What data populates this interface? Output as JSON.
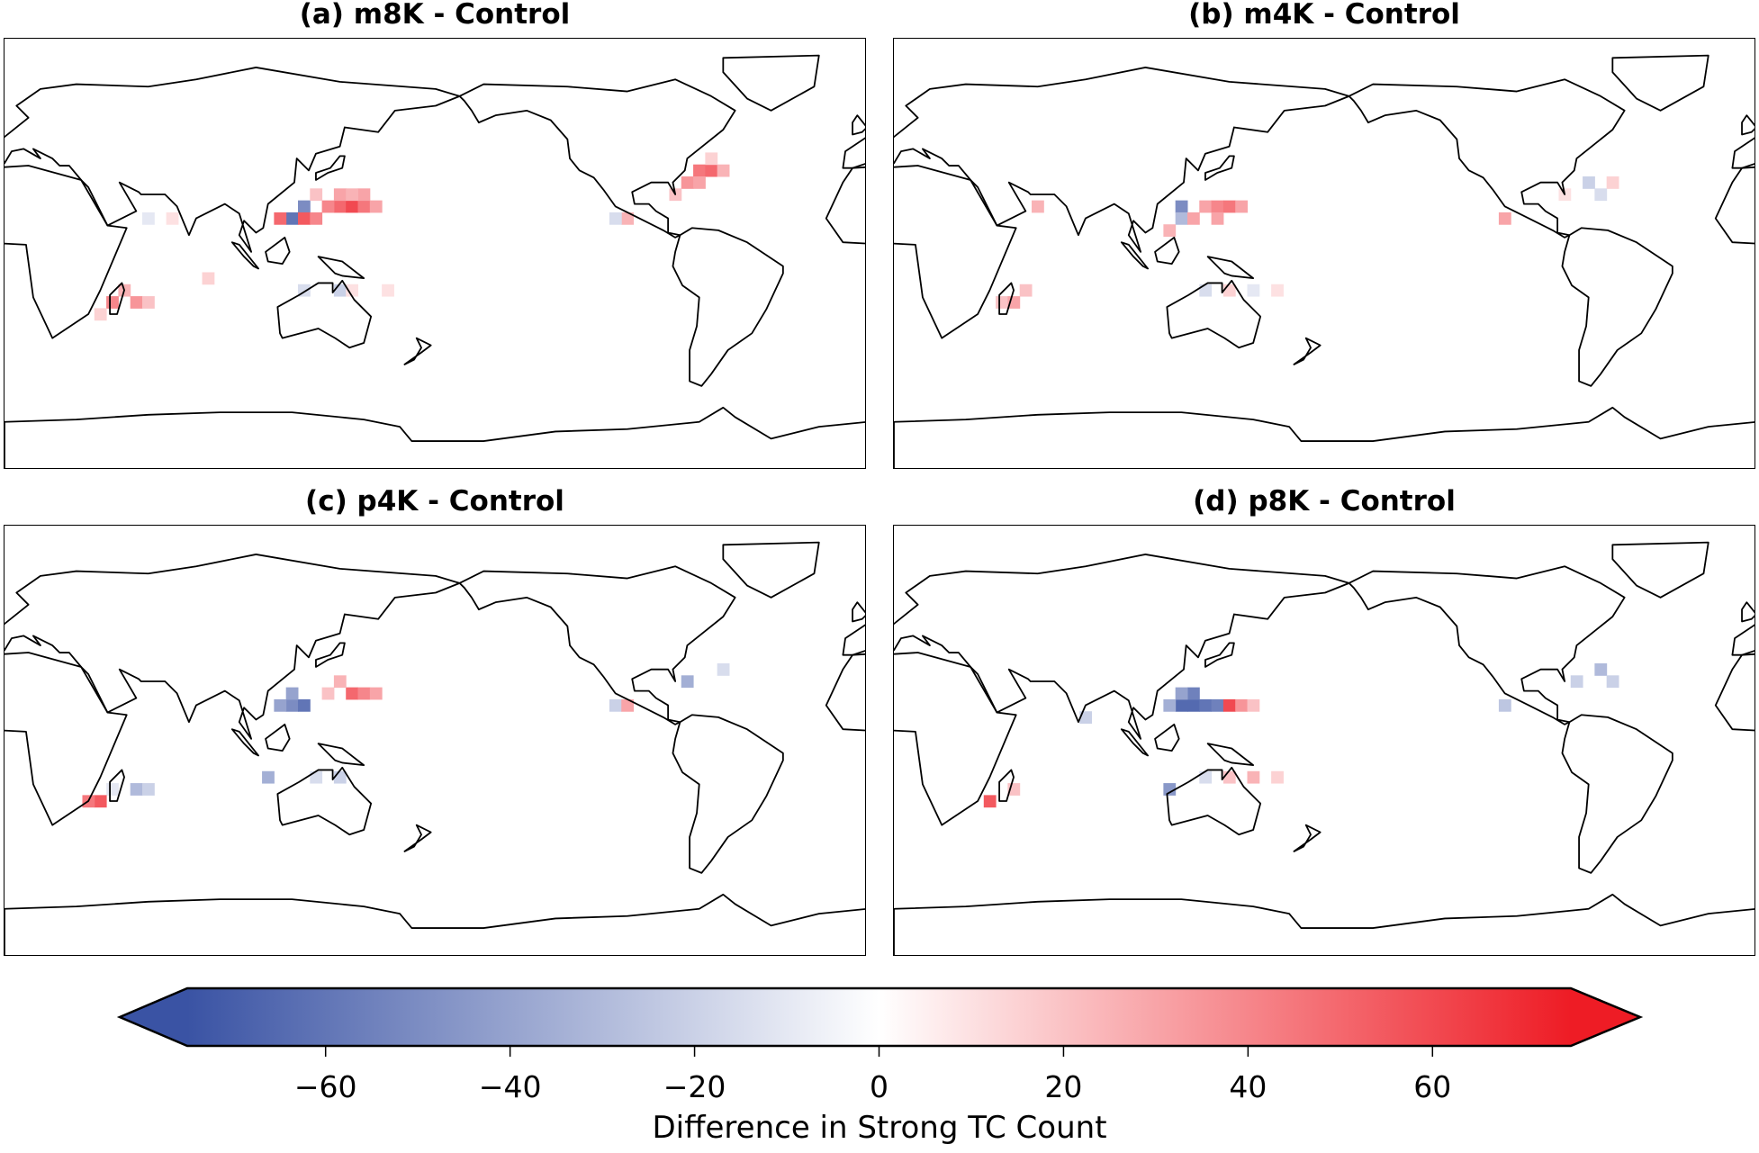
{
  "chart_data": {
    "type": "heatmap",
    "projection": "PlateCarree, central longitude 180",
    "colormap": {
      "name": "bwr",
      "low_color": "#3a53a4",
      "mid_color": "#ffffff",
      "high_color": "#ee1c25",
      "vmin": -75,
      "vmax": 75,
      "extend": "both"
    },
    "colorbar": {
      "label": "Difference in Strong TC Count",
      "ticks": [
        -60,
        -40,
        -20,
        0,
        20,
        40,
        60
      ],
      "tick_labels": [
        "−60",
        "−40",
        "−20",
        "0",
        "20",
        "40",
        "60"
      ],
      "placement": "bottom"
    },
    "panels": [
      {
        "title": "(a) m8K - Control",
        "cells": [
          [
            140,
            20,
            50
          ],
          [
            145,
            20,
            60
          ],
          [
            150,
            20,
            45
          ],
          [
            135,
            20,
            40
          ],
          [
            120,
            15,
            -60
          ],
          [
            125,
            20,
            -50
          ],
          [
            115,
            15,
            50
          ],
          [
            125,
            15,
            55
          ],
          [
            130,
            15,
            40
          ],
          [
            140,
            25,
            30
          ],
          [
            150,
            25,
            30
          ],
          [
            155,
            20,
            30
          ],
          [
            130,
            25,
            20
          ],
          [
            145,
            25,
            25
          ],
          [
            285,
            30,
            35
          ],
          [
            290,
            35,
            45
          ],
          [
            295,
            35,
            50
          ],
          [
            290,
            30,
            30
          ],
          [
            300,
            35,
            25
          ],
          [
            295,
            40,
            15
          ],
          [
            280,
            25,
            20
          ],
          [
            260,
            15,
            25
          ],
          [
            255,
            15,
            -15
          ],
          [
            60,
            15,
            -10
          ],
          [
            70,
            15,
            10
          ],
          [
            45,
            -20,
            40
          ],
          [
            55,
            -20,
            35
          ],
          [
            50,
            -15,
            25
          ],
          [
            60,
            -20,
            20
          ],
          [
            40,
            -25,
            15
          ],
          [
            85,
            -10,
            15
          ],
          [
            125,
            -15,
            -15
          ],
          [
            140,
            -15,
            -20
          ],
          [
            145,
            -15,
            10
          ],
          [
            160,
            -15,
            10
          ]
        ]
      },
      {
        "title": "(b) m4K - Control",
        "cells": [
          [
            120,
            20,
            -50
          ],
          [
            120,
            15,
            -30
          ],
          [
            130,
            20,
            30
          ],
          [
            135,
            20,
            40
          ],
          [
            140,
            20,
            45
          ],
          [
            145,
            20,
            30
          ],
          [
            125,
            15,
            30
          ],
          [
            135,
            15,
            30
          ],
          [
            115,
            10,
            25
          ],
          [
            255,
            15,
            30
          ],
          [
            290,
            30,
            -20
          ],
          [
            295,
            25,
            -15
          ],
          [
            280,
            25,
            10
          ],
          [
            300,
            30,
            15
          ],
          [
            60,
            20,
            25
          ],
          [
            45,
            -20,
            20
          ],
          [
            50,
            -20,
            30
          ],
          [
            55,
            -15,
            20
          ],
          [
            130,
            -15,
            -15
          ],
          [
            140,
            -15,
            15
          ],
          [
            150,
            -15,
            -10
          ],
          [
            160,
            -15,
            10
          ]
        ]
      },
      {
        "title": "(c) p4K - Control",
        "cells": [
          [
            120,
            15,
            -50
          ],
          [
            115,
            15,
            -40
          ],
          [
            125,
            15,
            -60
          ],
          [
            120,
            20,
            -40
          ],
          [
            135,
            20,
            20
          ],
          [
            145,
            20,
            50
          ],
          [
            150,
            20,
            40
          ],
          [
            155,
            20,
            30
          ],
          [
            140,
            25,
            25
          ],
          [
            255,
            15,
            -20
          ],
          [
            260,
            15,
            30
          ],
          [
            285,
            25,
            -35
          ],
          [
            300,
            30,
            -15
          ],
          [
            45,
            -20,
            -10
          ],
          [
            40,
            -25,
            55
          ],
          [
            35,
            -25,
            45
          ],
          [
            55,
            -20,
            -30
          ],
          [
            60,
            -20,
            -20
          ],
          [
            110,
            -15,
            -35
          ],
          [
            140,
            -15,
            -20
          ],
          [
            130,
            -15,
            -15
          ]
        ]
      },
      {
        "title": "(d) p8K - Control",
        "cells": [
          [
            120,
            15,
            -65
          ],
          [
            125,
            15,
            -65
          ],
          [
            130,
            15,
            -60
          ],
          [
            135,
            15,
            -55
          ],
          [
            125,
            20,
            -55
          ],
          [
            120,
            20,
            -40
          ],
          [
            140,
            15,
            60
          ],
          [
            145,
            15,
            35
          ],
          [
            150,
            15,
            20
          ],
          [
            115,
            15,
            -35
          ],
          [
            80,
            10,
            -20
          ],
          [
            255,
            15,
            -25
          ],
          [
            295,
            30,
            -30
          ],
          [
            300,
            25,
            -20
          ],
          [
            285,
            25,
            -20
          ],
          [
            40,
            -25,
            55
          ],
          [
            50,
            -20,
            20
          ],
          [
            115,
            -20,
            -45
          ],
          [
            130,
            -15,
            -15
          ],
          [
            140,
            -15,
            20
          ],
          [
            150,
            -15,
            25
          ],
          [
            160,
            -15,
            15
          ]
        ]
      }
    ]
  }
}
